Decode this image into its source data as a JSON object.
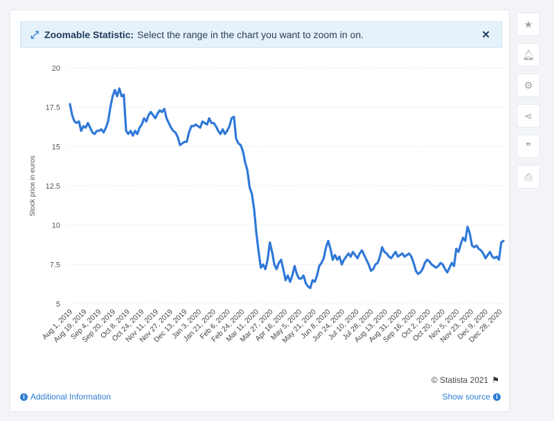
{
  "banner": {
    "icon": "expand-arrows-icon",
    "title": "Zoomable Statistic:",
    "text": "Select the range in the chart you want to zoom in on."
  },
  "footer": {
    "copyright": "© Statista 2021",
    "additional_info": "Additional Information",
    "show_source": "Show source"
  },
  "sidebar": {
    "buttons": [
      "star-icon",
      "bell-icon",
      "gear-icon",
      "share-icon",
      "quote-icon",
      "print-icon"
    ]
  },
  "colors": {
    "line": "#2f78d8",
    "grid": "#d6d9de",
    "accent": "#2e7dd1"
  },
  "chart_data": {
    "type": "line",
    "ylabel": "Stock price in euros",
    "ylim": [
      5,
      20
    ],
    "yticks": [
      5,
      7.5,
      10,
      12.5,
      15,
      17.5,
      20
    ],
    "ytick_labels": [
      "5",
      "7.5",
      "10",
      "12.5",
      "15",
      "17.5",
      "20"
    ],
    "xtick_labels": [
      "Aug 1, 2019",
      "Aug 19, 2019",
      "Sep 4, 2019",
      "Sep 20, 2019",
      "Oct 8, 2019",
      "Oct 24, 2019",
      "Nov 11, 2019",
      "Nov 27, 2019",
      "Dec 13, 2019",
      "Jan 3, 2020",
      "Jan 21, 2020",
      "Feb 6, 2020",
      "Feb 24, 2020",
      "Mar 11, 2020",
      "Mar 27, 2020",
      "Apr 16, 2020",
      "May 5, 2020",
      "May 21, 2020",
      "Jun 8, 2020",
      "Jun 24, 2020",
      "Jul 10, 2020",
      "Jul 28, 2020",
      "Aug 13, 2020",
      "Aug 31, 2020",
      "Sep 16, 2020",
      "Oct 2, 2020",
      "Oct 20, 2020",
      "Nov 5, 2020",
      "Nov 23, 2020",
      "Dec 9, 2020",
      "Dec 28, 2020"
    ],
    "grid": true,
    "series": [
      {
        "values": [
          17.7,
          17.0,
          16.6,
          16.5,
          16.6,
          16.0,
          16.3,
          16.2,
          16.5,
          16.2,
          15.9,
          15.8,
          16.0,
          16.0,
          16.1,
          15.9,
          16.2,
          16.6,
          17.5,
          18.2,
          18.6,
          18.2,
          18.7,
          18.2,
          18.3,
          16.0,
          15.8,
          16.0,
          15.7,
          16.0,
          15.8,
          16.2,
          16.4,
          16.8,
          16.6,
          17.0,
          17.2,
          17.0,
          16.8,
          17.1,
          17.3,
          17.2,
          17.4,
          16.8,
          16.5,
          16.2,
          16.0,
          15.9,
          15.6,
          15.1,
          15.2,
          15.3,
          15.3,
          15.9,
          16.3,
          16.3,
          16.4,
          16.3,
          16.2,
          16.6,
          16.5,
          16.4,
          16.8,
          16.5,
          16.5,
          16.3,
          16.0,
          15.8,
          16.1,
          15.8,
          16.0,
          16.3,
          16.8,
          16.9,
          15.5,
          15.2,
          15.1,
          14.7,
          14.0,
          13.5,
          12.4,
          12.0,
          11.0,
          9.5,
          8.3,
          7.3,
          7.5,
          7.2,
          7.8,
          8.9,
          8.3,
          7.5,
          7.2,
          7.6,
          7.8,
          7.2,
          6.5,
          6.8,
          6.4,
          6.8,
          7.4,
          6.9,
          6.6,
          6.6,
          6.8,
          6.3,
          6.1,
          6.0,
          6.5,
          6.4,
          6.8,
          7.4,
          7.6,
          7.9,
          8.6,
          9.0,
          8.5,
          7.8,
          8.1,
          7.8,
          8.0,
          7.5,
          7.8,
          8.0,
          8.2,
          8.0,
          8.3,
          8.1,
          7.9,
          8.2,
          8.4,
          8.1,
          7.8,
          7.5,
          7.1,
          7.2,
          7.5,
          7.6,
          8.0,
          8.6,
          8.3,
          8.2,
          8.0,
          7.9,
          8.1,
          8.3,
          8.0,
          8.1,
          8.2,
          8.0,
          8.1,
          8.2,
          8.0,
          7.6,
          7.1,
          6.9,
          7.0,
          7.2,
          7.6,
          7.8,
          7.7,
          7.5,
          7.4,
          7.3,
          7.4,
          7.6,
          7.5,
          7.2,
          7.0,
          7.3,
          7.6,
          7.4,
          8.5,
          8.3,
          8.8,
          9.2,
          9.0,
          9.9,
          9.5,
          8.7,
          8.6,
          8.7,
          8.5,
          8.4,
          8.2,
          7.9,
          8.1,
          8.3,
          8.0,
          7.9,
          8.0,
          7.8,
          8.9,
          9.0
        ]
      }
    ]
  }
}
